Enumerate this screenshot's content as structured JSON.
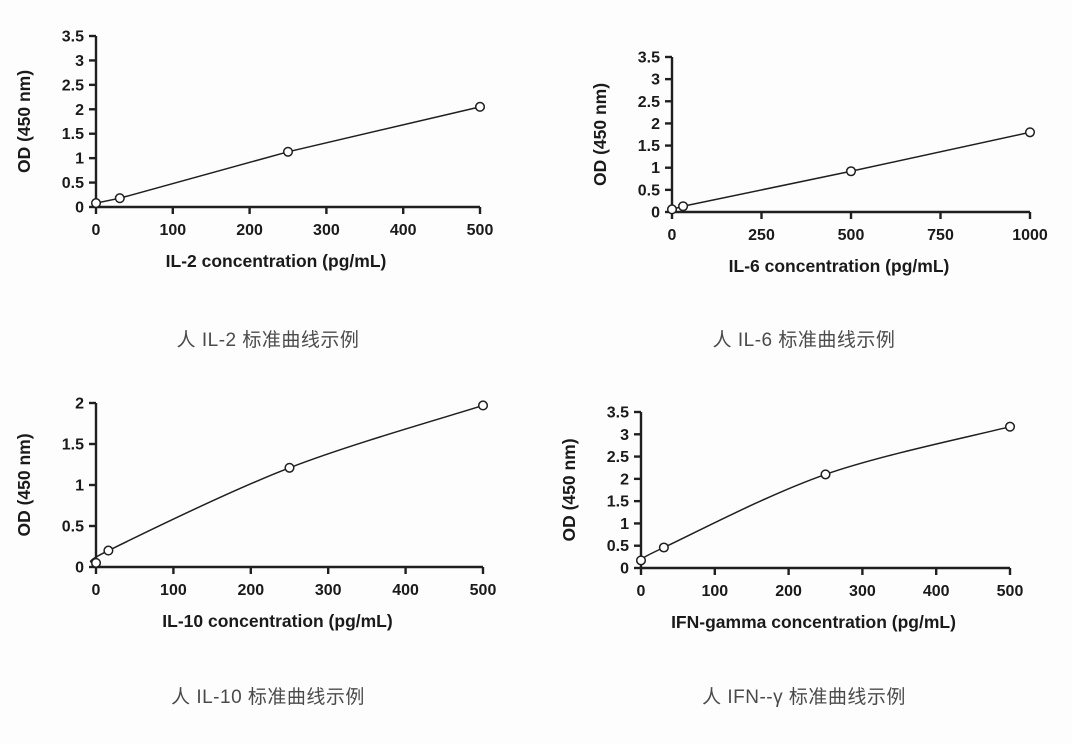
{
  "page": {
    "description": "Four ELISA standard curve example charts (human IL-2, IL-6, IL-10, IFN-gamma)",
    "background": "#fdfdfd"
  },
  "colors": {
    "axis": "#1f1f1f",
    "curve_line": "#1f1f1f",
    "marker_stroke": "#1f1f1f",
    "marker_fill": "#ffffff",
    "chart_text": "#1a1a1a",
    "caption_text": "#4a4a4a"
  },
  "chart_data": [
    {
      "name": "human-il2-standard-curve",
      "type": "line",
      "curve": "linear",
      "marker": "open-circle",
      "grid": false,
      "legend": "none",
      "x": [
        0,
        31,
        250,
        500
      ],
      "y": [
        0.08,
        0.18,
        1.13,
        2.05
      ],
      "xlabel": "IL-2 concentration (pg/mL)",
      "ylabel": "OD (450 nm)",
      "xlim": [
        0,
        500
      ],
      "ylim": [
        0,
        3.5
      ],
      "xticks": [
        0,
        100,
        200,
        300,
        400,
        500
      ],
      "yticks": [
        0,
        0.5,
        1,
        1.5,
        2,
        2.5,
        3,
        3.5
      ],
      "caption": "人 IL-2 标准曲线示例"
    },
    {
      "name": "human-il6-standard-curve",
      "type": "line",
      "curve": "linear",
      "marker": "open-circle",
      "grid": false,
      "legend": "none",
      "x": [
        0,
        31,
        500,
        1000
      ],
      "y": [
        0.06,
        0.13,
        0.92,
        1.8
      ],
      "xlabel": "IL-6 concentration (pg/mL)",
      "ylabel": "OD (450 nm)",
      "xlim": [
        0,
        1000
      ],
      "ylim": [
        0,
        3.5
      ],
      "xticks": [
        0,
        250,
        500,
        750,
        1000
      ],
      "yticks": [
        0,
        0.5,
        1,
        1.5,
        2,
        2.5,
        3,
        3.5
      ],
      "caption": "人 IL-6  标准曲线示例"
    },
    {
      "name": "human-il10-standard-curve",
      "type": "line",
      "curve": "smooth",
      "marker": "open-circle",
      "grid": false,
      "legend": "none",
      "x": [
        0,
        16,
        250,
        500
      ],
      "y": [
        0.05,
        0.2,
        1.21,
        1.97
      ],
      "xlabel": "IL-10 concentration (pg/mL)",
      "ylabel": "OD (450 nm)",
      "xlim": [
        0,
        500
      ],
      "ylim": [
        0,
        2
      ],
      "xticks": [
        0,
        100,
        200,
        300,
        400,
        500
      ],
      "yticks": [
        0,
        0.5,
        1,
        1.5,
        2
      ],
      "caption": "人 IL-10 标准曲线示例"
    },
    {
      "name": "human-ifn-gamma-standard-curve",
      "type": "line",
      "curve": "smooth",
      "marker": "open-circle",
      "grid": false,
      "legend": "none",
      "x": [
        0,
        31,
        250,
        500
      ],
      "y": [
        0.17,
        0.46,
        2.1,
        3.17
      ],
      "xlabel": "IFN-gamma concentration (pg/mL)",
      "ylabel": "OD (450 nm)",
      "xlim": [
        0,
        500
      ],
      "ylim": [
        0,
        3.5
      ],
      "xticks": [
        0,
        100,
        200,
        300,
        400,
        500
      ],
      "yticks": [
        0,
        0.5,
        1,
        1.5,
        2,
        2.5,
        3,
        3.5
      ],
      "caption": "人 IFN--γ  标准曲线示例"
    }
  ]
}
